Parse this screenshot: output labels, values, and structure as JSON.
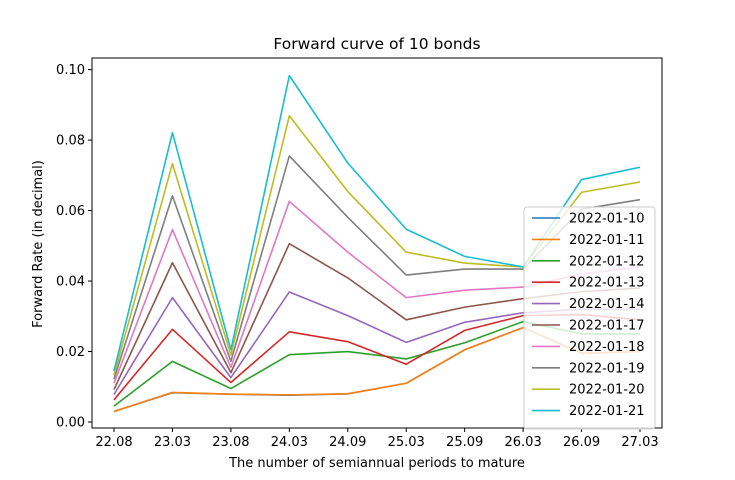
{
  "chart_data": {
    "type": "line",
    "title": "Forward curve of 10 bonds",
    "xlabel": "The number of semiannual periods to mature",
    "ylabel": "Forward Rate (in decimal)",
    "categories": [
      "22.08",
      "23.03",
      "23.08",
      "24.03",
      "24.09",
      "25.03",
      "25.09",
      "26.03",
      "26.09",
      "27.03"
    ],
    "ylim": [
      -0.0017,
      0.1033
    ],
    "yticks": [
      0.0,
      0.02,
      0.04,
      0.06,
      0.08,
      0.1
    ],
    "ytick_labels": [
      "0.00",
      "0.02",
      "0.04",
      "0.06",
      "0.08",
      "0.10"
    ],
    "grid": false,
    "legend_position": "right",
    "series": [
      {
        "name": "2022-01-10",
        "color": "#1f77b4",
        "values": [
          0.003,
          0.0083,
          0.0079,
          0.0076,
          0.008,
          0.011,
          0.0205,
          0.0268,
          0.0195,
          0.02
        ]
      },
      {
        "name": "2022-01-11",
        "color": "#ff7f0e",
        "values": [
          0.003,
          0.0084,
          0.0079,
          0.0077,
          0.008,
          0.011,
          0.0205,
          0.0268,
          0.0195,
          0.02
        ]
      },
      {
        "name": "2022-01-12",
        "color": "#2ca02c",
        "values": [
          0.0045,
          0.0172,
          0.0095,
          0.0191,
          0.02,
          0.0179,
          0.0225,
          0.0285,
          0.025,
          0.025
        ]
      },
      {
        "name": "2022-01-13",
        "color": "#d62728",
        "values": [
          0.0063,
          0.0263,
          0.0112,
          0.0256,
          0.0228,
          0.0164,
          0.026,
          0.0302,
          0.0305,
          0.029
        ]
      },
      {
        "name": "2022-01-14",
        "color": "#9467bd",
        "values": [
          0.0078,
          0.0353,
          0.0126,
          0.0369,
          0.0302,
          0.0226,
          0.0283,
          0.031,
          0.032,
          0.032
        ]
      },
      {
        "name": "2022-01-17",
        "color": "#8c564b",
        "values": [
          0.0092,
          0.0452,
          0.014,
          0.0506,
          0.0409,
          0.029,
          0.0326,
          0.035,
          0.037,
          0.038
        ]
      },
      {
        "name": "2022-01-18",
        "color": "#e377c2",
        "values": [
          0.011,
          0.0546,
          0.0155,
          0.0626,
          0.0482,
          0.0353,
          0.0374,
          0.0383,
          0.042,
          0.044
        ]
      },
      {
        "name": "2022-01-19",
        "color": "#7f7f7f",
        "values": [
          0.0122,
          0.0642,
          0.0172,
          0.0755,
          0.0581,
          0.0417,
          0.0434,
          0.0434,
          0.0604,
          0.0631
        ]
      },
      {
        "name": "2022-01-20",
        "color": "#bcbd22",
        "values": [
          0.0133,
          0.0733,
          0.019,
          0.0869,
          0.0654,
          0.0482,
          0.0451,
          0.044,
          0.0652,
          0.0681
        ]
      },
      {
        "name": "2022-01-21",
        "color": "#17becf",
        "values": [
          0.0145,
          0.0821,
          0.0205,
          0.0983,
          0.0735,
          0.0547,
          0.047,
          0.044,
          0.0688,
          0.0723
        ]
      }
    ]
  }
}
